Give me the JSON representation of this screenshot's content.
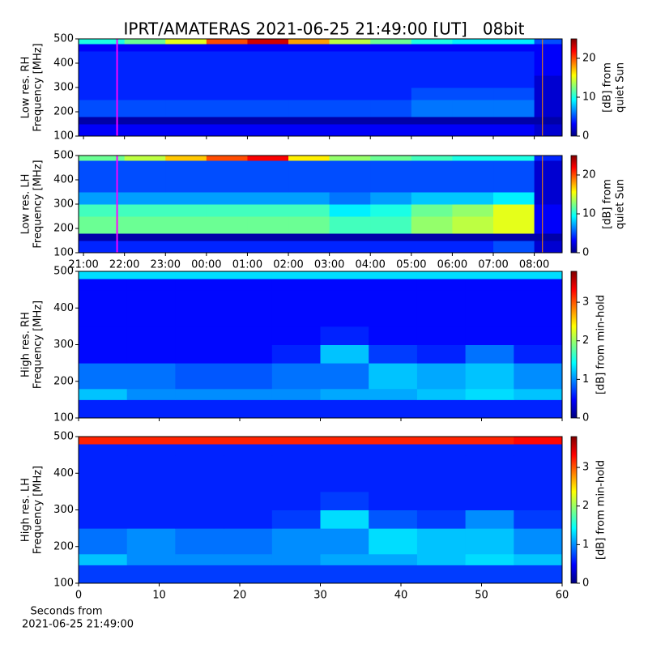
{
  "chart_data": [
    {
      "type": "heatmap",
      "title": "IPRT/AMATERAS 2021-06-25 21:49:00 [UT]   08bit",
      "ylabel": [
        "Low res. RH",
        "Frequency [MHz]"
      ],
      "cbar_label": [
        "[dB] from",
        "quiet Sun"
      ],
      "xlim": [
        -0.12,
        11.68
      ],
      "xticks": [
        0,
        1,
        2,
        3,
        4,
        5,
        6,
        7,
        8,
        9,
        10,
        11
      ],
      "ylim": [
        100,
        500
      ],
      "yticks": [
        100,
        200,
        300,
        400,
        500
      ],
      "clim": [
        0,
        25
      ],
      "cbar_ticks": [
        0,
        10,
        20
      ],
      "colormap": "jet",
      "x_edges": [
        -0.12,
        1,
        2,
        3,
        4,
        5,
        6,
        7,
        8,
        9,
        10,
        11,
        11.68
      ],
      "y_edges": [
        100,
        150,
        180,
        250,
        300,
        350,
        450,
        480,
        500
      ],
      "z": [
        [
          3,
          3,
          3,
          3,
          3,
          3,
          3,
          3,
          3,
          3,
          3,
          2
        ],
        [
          1,
          1,
          1,
          1,
          1,
          1,
          1,
          1,
          1,
          1,
          1,
          1
        ],
        [
          5,
          5,
          5,
          5,
          5,
          5,
          5,
          5,
          6,
          6,
          6,
          2
        ],
        [
          4,
          4,
          4,
          4,
          4,
          4,
          4,
          4,
          5,
          5,
          5,
          2
        ],
        [
          4,
          4,
          4,
          4,
          4,
          4,
          4,
          4,
          4,
          4,
          4,
          2
        ],
        [
          4,
          4,
          4,
          4,
          4,
          4,
          4,
          4,
          4,
          4,
          4,
          3
        ],
        [
          3,
          3,
          3,
          3,
          3,
          3,
          3,
          3,
          3,
          3,
          3,
          3
        ],
        [
          10,
          12,
          15,
          20,
          23,
          18,
          14,
          12,
          10,
          9,
          9,
          5
        ]
      ],
      "vlines": [
        {
          "x": 0.82,
          "color": "#ff00ff"
        },
        {
          "x": 11.2,
          "color": "#ff8c00"
        }
      ]
    },
    {
      "type": "heatmap",
      "ylabel": [
        "Low res. LH",
        "Frequency [MHz]"
      ],
      "cbar_label": [
        "[dB] from",
        "quiet Sun"
      ],
      "xlim": [
        -0.12,
        11.68
      ],
      "xticks": [
        {
          "value": 0,
          "label": "21:00"
        },
        {
          "value": 1,
          "label": "22:00"
        },
        {
          "value": 2,
          "label": "23:00"
        },
        {
          "value": 3,
          "label": "00:00"
        },
        {
          "value": 4,
          "label": "01:00"
        },
        {
          "value": 5,
          "label": "02:00"
        },
        {
          "value": 6,
          "label": "03:00"
        },
        {
          "value": 7,
          "label": "04:00"
        },
        {
          "value": 8,
          "label": "05:00"
        },
        {
          "value": 9,
          "label": "06:00"
        },
        {
          "value": 10,
          "label": "07:00"
        },
        {
          "value": 11,
          "label": "08:00"
        }
      ],
      "ylim": [
        100,
        500
      ],
      "yticks": [
        100,
        200,
        300,
        400,
        500
      ],
      "clim": [
        0,
        25
      ],
      "cbar_ticks": [
        0,
        10,
        20
      ],
      "colormap": "jet",
      "x_edges": [
        -0.12,
        1,
        2,
        3,
        4,
        5,
        6,
        7,
        8,
        9,
        10,
        11,
        11.68
      ],
      "y_edges": [
        100,
        150,
        180,
        250,
        300,
        350,
        450,
        480,
        500
      ],
      "z": [
        [
          4,
          4,
          4,
          4,
          4,
          4,
          4,
          4,
          4,
          4,
          5,
          2
        ],
        [
          1,
          1,
          1,
          1,
          1,
          1,
          1,
          1,
          1,
          1,
          1,
          1
        ],
        [
          12,
          12,
          12,
          12,
          12,
          12,
          11,
          11,
          13,
          14,
          15,
          3
        ],
        [
          11,
          11,
          11,
          11,
          11,
          11,
          9,
          10,
          12,
          13,
          15,
          3
        ],
        [
          7,
          7,
          7,
          7,
          7,
          7,
          6,
          7,
          8,
          8,
          9,
          2
        ],
        [
          5,
          5,
          5,
          5,
          5,
          5,
          5,
          5,
          5,
          5,
          5,
          2
        ],
        [
          5,
          5,
          5,
          5,
          5,
          5,
          5,
          5,
          5,
          5,
          5,
          2
        ],
        [
          12,
          14,
          17,
          20,
          22,
          16,
          13,
          12,
          11,
          10,
          10,
          4
        ]
      ],
      "vlines": [
        {
          "x": 0.82,
          "color": "#ff00ff"
        },
        {
          "x": 11.2,
          "color": "#ff8c00"
        }
      ]
    },
    {
      "type": "heatmap",
      "ylabel": [
        "High res. RH",
        "Frequency [MHz]"
      ],
      "cbar_label": [
        "[dB] from min-hold"
      ],
      "xlim": [
        0,
        60
      ],
      "xticks": [
        0,
        10,
        20,
        30,
        40,
        50,
        60
      ],
      "ylim": [
        100,
        500
      ],
      "yticks": [
        100,
        200,
        300,
        400,
        500
      ],
      "clim": [
        0,
        3.8
      ],
      "cbar_ticks": [
        0,
        1,
        2,
        3
      ],
      "colormap": "jet",
      "x_edges": [
        0,
        6,
        12,
        18,
        24,
        30,
        36,
        42,
        48,
        54,
        60
      ],
      "y_edges": [
        100,
        150,
        180,
        250,
        300,
        350,
        450,
        480,
        500
      ],
      "z": [
        [
          0.6,
          0.6,
          0.6,
          0.6,
          0.6,
          0.6,
          0.6,
          0.6,
          0.6,
          0.6
        ],
        [
          1.2,
          1.0,
          1.0,
          1.0,
          1.0,
          1.1,
          1.1,
          1.2,
          1.3,
          1.2
        ],
        [
          0.9,
          0.9,
          0.8,
          0.8,
          0.9,
          0.9,
          1.2,
          1.1,
          1.2,
          1.0
        ],
        [
          0.5,
          0.5,
          0.5,
          0.5,
          0.6,
          1.2,
          0.7,
          0.6,
          0.9,
          0.6
        ],
        [
          0.5,
          0.5,
          0.5,
          0.5,
          0.5,
          0.6,
          0.5,
          0.5,
          0.5,
          0.5
        ],
        [
          0.5,
          0.5,
          0.5,
          0.5,
          0.5,
          0.5,
          0.5,
          0.5,
          0.5,
          0.5
        ],
        [
          0.5,
          0.5,
          0.5,
          0.5,
          0.5,
          0.5,
          0.5,
          0.5,
          0.5,
          0.5
        ],
        [
          1.3,
          1.3,
          1.3,
          1.3,
          1.3,
          1.3,
          1.3,
          1.3,
          1.3,
          1.3
        ]
      ]
    },
    {
      "type": "heatmap",
      "ylabel": [
        "High res. LH",
        "Frequency [MHz]"
      ],
      "cbar_label": [
        "[dB] from min-hold"
      ],
      "xlabel": [
        "Seconds from",
        "2021-06-25 21:49:00"
      ],
      "xlim": [
        0,
        60
      ],
      "xticks": [
        0,
        10,
        20,
        30,
        40,
        50,
        60
      ],
      "ylim": [
        100,
        500
      ],
      "yticks": [
        100,
        200,
        300,
        400,
        500
      ],
      "clim": [
        0,
        3.8
      ],
      "cbar_ticks": [
        0,
        1,
        2,
        3
      ],
      "colormap": "jet",
      "x_edges": [
        0,
        6,
        12,
        18,
        24,
        30,
        36,
        42,
        48,
        54,
        60
      ],
      "y_edges": [
        100,
        150,
        180,
        250,
        300,
        350,
        450,
        480,
        500
      ],
      "z": [
        [
          0.7,
          0.7,
          0.7,
          0.7,
          0.7,
          0.7,
          0.7,
          0.7,
          0.7,
          0.7
        ],
        [
          1.2,
          1.0,
          1.0,
          1.0,
          1.0,
          1.1,
          1.1,
          1.2,
          1.3,
          1.2
        ],
        [
          0.9,
          1.0,
          0.9,
          0.9,
          1.0,
          1.0,
          1.3,
          1.2,
          1.2,
          1.0
        ],
        [
          0.6,
          0.6,
          0.6,
          0.6,
          0.7,
          1.3,
          0.8,
          0.7,
          1.0,
          0.7
        ],
        [
          0.6,
          0.6,
          0.6,
          0.6,
          0.6,
          0.7,
          0.6,
          0.6,
          0.6,
          0.6
        ],
        [
          0.6,
          0.6,
          0.6,
          0.6,
          0.6,
          0.6,
          0.6,
          0.6,
          0.6,
          0.6
        ],
        [
          0.6,
          0.6,
          0.6,
          0.6,
          0.6,
          0.6,
          0.6,
          0.6,
          0.6,
          0.6
        ],
        [
          3.2,
          3.2,
          3.2,
          3.2,
          3.2,
          3.2,
          3.2,
          3.2,
          3.2,
          3.3
        ]
      ]
    }
  ]
}
